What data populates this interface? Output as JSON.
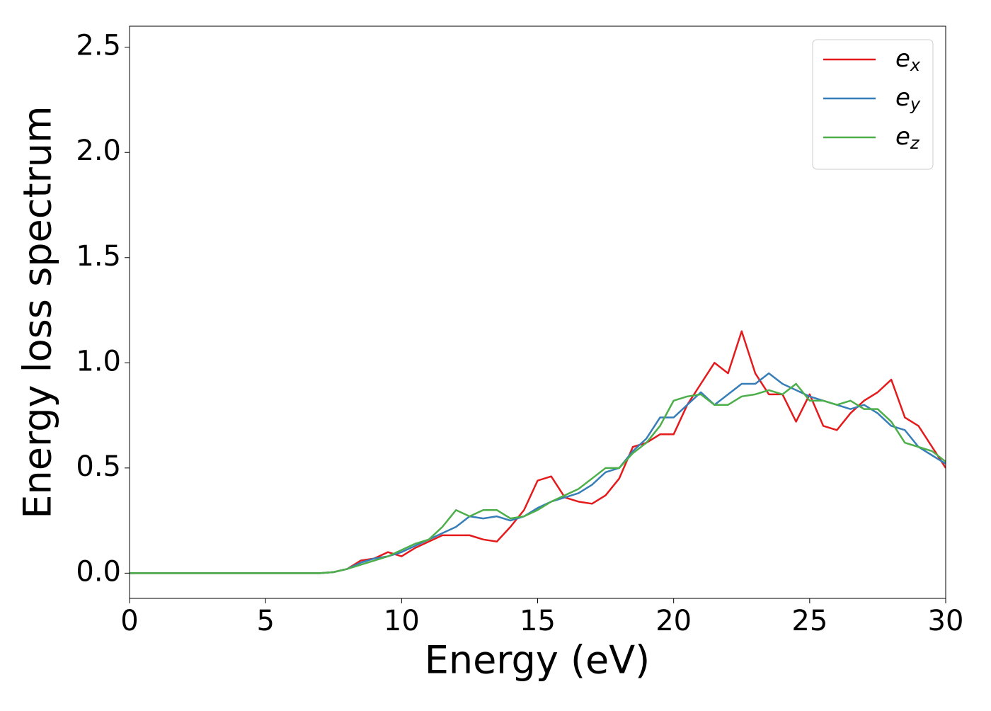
{
  "chart_data": {
    "type": "line",
    "x_label": "Energy (eV)",
    "y_label": "Energy loss spectrum",
    "x": [
      0,
      0.5,
      1,
      1.5,
      2,
      2.5,
      3,
      3.5,
      4,
      4.5,
      5,
      5.5,
      6,
      6.5,
      7,
      7.5,
      8,
      8.5,
      9,
      9.5,
      10,
      10.5,
      11,
      11.5,
      12,
      12.5,
      13,
      13.5,
      14,
      14.5,
      15,
      15.5,
      16,
      16.5,
      17,
      17.5,
      18,
      18.5,
      19,
      19.5,
      20,
      20.5,
      21,
      21.5,
      22,
      22.5,
      23,
      23.5,
      24,
      24.5,
      25,
      25.5,
      26,
      26.5,
      27,
      27.5,
      28,
      28.5,
      29,
      29.5,
      30
    ],
    "series": [
      {
        "name": "e_x",
        "color": "#e41a1c",
        "values": [
          0,
          0,
          0,
          0,
          0,
          0,
          0,
          0,
          0,
          0,
          0,
          0,
          0,
          0,
          0,
          0.005,
          0.02,
          0.06,
          0.07,
          0.1,
          0.08,
          0.12,
          0.15,
          0.18,
          0.18,
          0.18,
          0.16,
          0.15,
          0.22,
          0.3,
          0.44,
          0.46,
          0.36,
          0.34,
          0.33,
          0.37,
          0.45,
          0.6,
          0.62,
          0.66,
          0.66,
          0.8,
          0.9,
          1.0,
          0.95,
          1.15,
          0.95,
          0.85,
          0.85,
          0.72,
          0.85,
          0.7,
          0.68,
          0.76,
          0.82,
          0.86,
          0.92,
          0.74,
          0.7,
          0.6,
          0.5
        ]
      },
      {
        "name": "e_y",
        "color": "#377eb8",
        "values": [
          0,
          0,
          0,
          0,
          0,
          0,
          0,
          0,
          0,
          0,
          0,
          0,
          0,
          0,
          0,
          0.005,
          0.02,
          0.05,
          0.07,
          0.08,
          0.1,
          0.13,
          0.16,
          0.19,
          0.22,
          0.27,
          0.26,
          0.27,
          0.25,
          0.27,
          0.31,
          0.34,
          0.36,
          0.38,
          0.42,
          0.48,
          0.5,
          0.58,
          0.64,
          0.74,
          0.74,
          0.8,
          0.86,
          0.8,
          0.85,
          0.9,
          0.9,
          0.95,
          0.9,
          0.87,
          0.84,
          0.82,
          0.8,
          0.78,
          0.8,
          0.76,
          0.7,
          0.68,
          0.6,
          0.56,
          0.52
        ]
      },
      {
        "name": "e_z",
        "color": "#4daf4a",
        "values": [
          0,
          0,
          0,
          0,
          0,
          0,
          0,
          0,
          0,
          0,
          0,
          0,
          0,
          0,
          0,
          0.005,
          0.02,
          0.04,
          0.06,
          0.08,
          0.11,
          0.14,
          0.16,
          0.22,
          0.3,
          0.27,
          0.3,
          0.3,
          0.26,
          0.27,
          0.3,
          0.34,
          0.37,
          0.4,
          0.45,
          0.5,
          0.5,
          0.57,
          0.62,
          0.7,
          0.82,
          0.84,
          0.85,
          0.8,
          0.8,
          0.84,
          0.85,
          0.87,
          0.85,
          0.9,
          0.82,
          0.82,
          0.8,
          0.82,
          0.78,
          0.78,
          0.72,
          0.62,
          0.6,
          0.58,
          0.53
        ]
      }
    ],
    "xlim": [
      0,
      30
    ],
    "xticks": [
      0,
      5,
      10,
      15,
      20,
      25,
      30
    ],
    "ylim": [
      -0.12,
      2.6
    ],
    "yticks": [
      {
        "value": 0,
        "label": "0.0"
      },
      0.5,
      {
        "value": 1,
        "label": "1.0"
      },
      1.5,
      {
        "value": 2,
        "label": "2.0"
      },
      2.5
    ],
    "grid": false,
    "legend": "upper right"
  }
}
